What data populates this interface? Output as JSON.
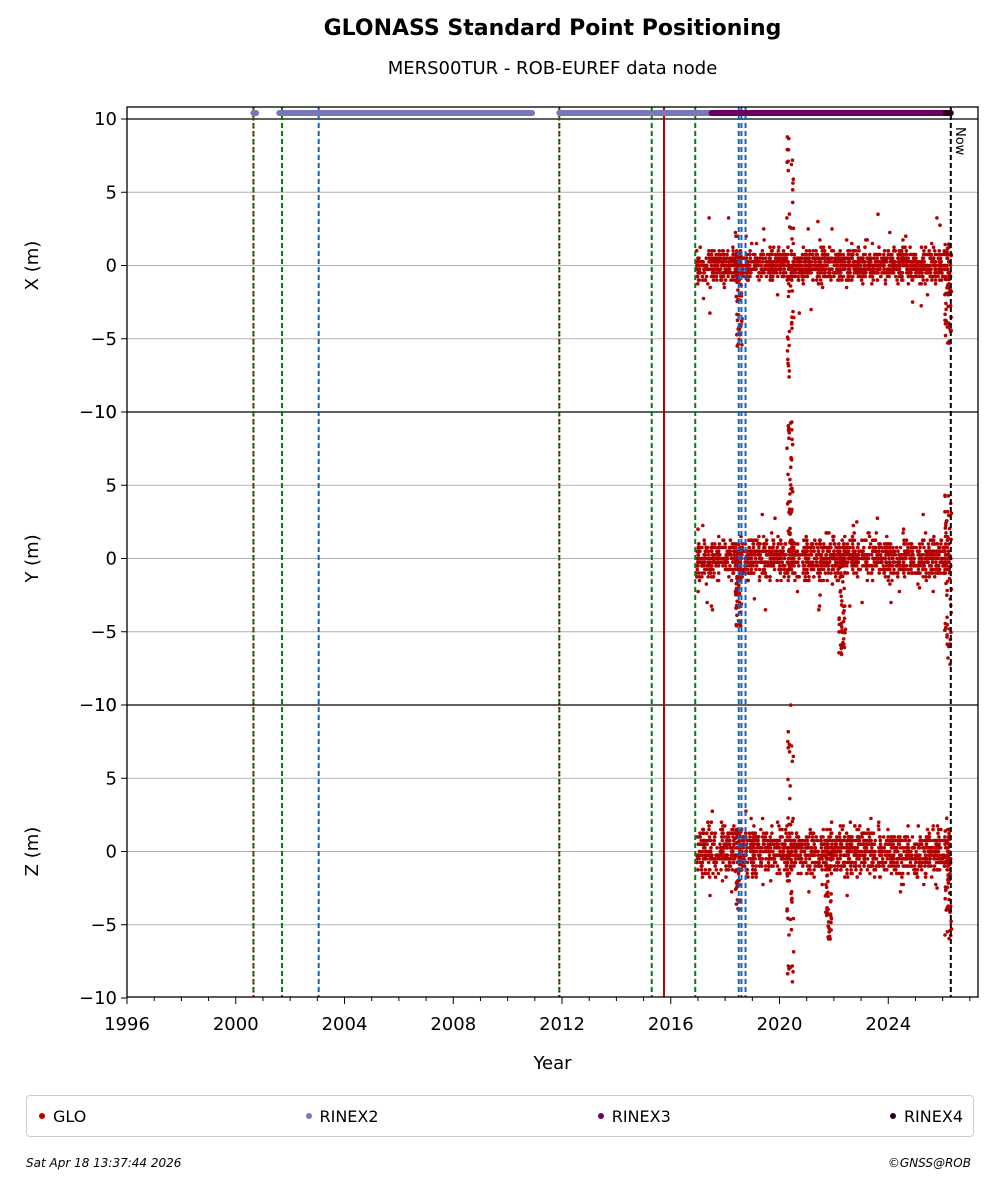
{
  "chart_data": {
    "type": "scatter",
    "title": "GLONASS Standard Point Positioning",
    "subtitle": "MERS00TUR - ROB-EUREF data node",
    "xlabel": "Year",
    "xlim": [
      1996,
      2027.3
    ],
    "x_ticks": [
      "1996",
      "2000",
      "2004",
      "2008",
      "2012",
      "2016",
      "2020",
      "2024"
    ],
    "y_ticks": [
      "−10",
      "−5",
      "0",
      "5",
      "10"
    ],
    "now_label": "Now",
    "now_year": 2026.3,
    "grid": true,
    "panels": [
      {
        "ylabel": "X (m)",
        "ylim": [
          -10,
          10
        ]
      },
      {
        "ylabel": "Y (m)",
        "ylim": [
          -10,
          10
        ]
      },
      {
        "ylabel": "Z (m)",
        "ylim": [
          -10,
          10
        ]
      }
    ],
    "data_start_year": 2016.95,
    "data_end_year": 2026.3,
    "vertical_lines": [
      {
        "x": 2000.65,
        "color": "#008000",
        "style": "dashed"
      },
      {
        "x": 2000.65,
        "color": "#b30000",
        "style": "dotted"
      },
      {
        "x": 2001.7,
        "color": "#008000",
        "style": "dashed"
      },
      {
        "x": 2003.05,
        "color": "#1060c0",
        "style": "dashed"
      },
      {
        "x": 2011.9,
        "color": "#008000",
        "style": "dashed"
      },
      {
        "x": 2011.9,
        "color": "#b30000",
        "style": "dotted"
      },
      {
        "x": 2015.3,
        "color": "#008000",
        "style": "dashed"
      },
      {
        "x": 2015.75,
        "color": "#b30000",
        "style": "solid"
      },
      {
        "x": 2016.9,
        "color": "#008000",
        "style": "dashed"
      },
      {
        "x": 2018.5,
        "color": "#1060c0",
        "style": "dashed"
      },
      {
        "x": 2018.6,
        "color": "#1060c0",
        "style": "dashed"
      },
      {
        "x": 2018.75,
        "color": "#1060c0",
        "style": "dashed"
      }
    ],
    "rinex_availability": [
      {
        "name": "RINEX2",
        "color": "#7878b8",
        "ranges": [
          [
            2000.65,
            2000.75
          ],
          [
            2001.6,
            2010.9
          ],
          [
            2011.9,
            2015.2
          ],
          [
            2015.4,
            2017.5
          ]
        ]
      },
      {
        "name": "RINEX3",
        "color": "#6b0060",
        "ranges": [
          [
            2017.5,
            2026.1
          ]
        ]
      },
      {
        "name": "RINEX4",
        "color": "#2a0020",
        "ranges": [
          [
            2026.1,
            2026.3
          ]
        ]
      }
    ],
    "series": [
      {
        "name": "GLO",
        "color": "#b30000",
        "panels": [
          {
            "spread": 0.55,
            "outlier_max": 3.5,
            "outlier_min": -3.5,
            "events": [
              {
                "x": 2020.4,
                "min": -8,
                "max": 9.5
              },
              {
                "x": 2018.5,
                "min": -5.5,
                "max": 1
              },
              {
                "x": 2026.2,
                "min": -5.5,
                "max": 1.5
              }
            ]
          },
          {
            "spread": 0.7,
            "outlier_max": 3,
            "outlier_min": -3.5,
            "events": [
              {
                "x": 2020.4,
                "min": -1,
                "max": 9.8
              },
              {
                "x": 2018.5,
                "min": -4.6,
                "max": 1
              },
              {
                "x": 2026.2,
                "min": -7.6,
                "max": 4.7
              },
              {
                "x": 2022.3,
                "min": -6.7,
                "max": 0
              }
            ]
          },
          {
            "spread": 0.8,
            "outlier_max": 3,
            "outlier_min": -3,
            "events": [
              {
                "x": 2020.4,
                "min": -10,
                "max": 10
              },
              {
                "x": 2018.5,
                "min": -4,
                "max": 1.5
              },
              {
                "x": 2026.2,
                "min": -6,
                "max": 2.5
              },
              {
                "x": 2021.8,
                "min": -6,
                "max": 0
              }
            ]
          }
        ]
      }
    ]
  },
  "legend": [
    {
      "label": "GLO",
      "color": "#b30000"
    },
    {
      "label": "RINEX2",
      "color": "#7878b8"
    },
    {
      "label": "RINEX3",
      "color": "#6b0060"
    },
    {
      "label": "RINEX4",
      "color": "#2a0020"
    }
  ],
  "footer": {
    "timestamp": "Sat Apr 18 13:37:44 2026",
    "copyright": "©GNSS@ROB"
  }
}
